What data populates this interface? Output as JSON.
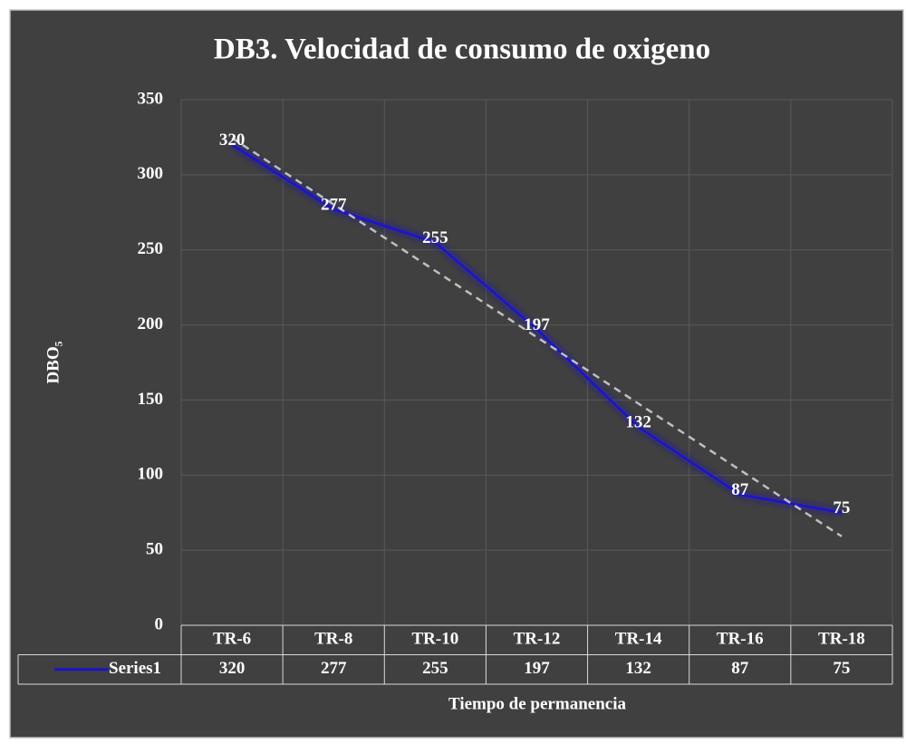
{
  "chart_data": {
    "type": "line",
    "title": "DB3. Velocidad de  consumo de oxigeno",
    "x_label": "Tiempo de permanencia",
    "y_label": "DBO₅",
    "categories": [
      "TR-6",
      "TR-8",
      "TR-10",
      "TR-12",
      "TR-14",
      "TR-16",
      "TR-18"
    ],
    "series": [
      {
        "name": "Series1",
        "color": "#1a14c8",
        "values": [
          320,
          277,
          255,
          197,
          132,
          87,
          75
        ]
      }
    ],
    "ylim": [
      0,
      350
    ],
    "yticks": [
      0,
      50,
      100,
      150,
      200,
      250,
      300,
      350
    ],
    "grid": true,
    "trendline": "linear",
    "data_table": true
  }
}
